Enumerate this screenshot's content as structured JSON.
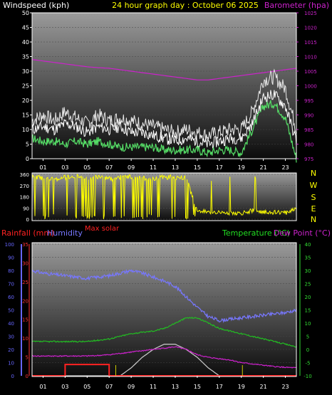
{
  "header": {
    "left": "Windspeed (kph)",
    "center": "24 hour graph day : October 06 2025",
    "right": "Barometer (hpa)"
  },
  "colors": {
    "background": "#000000",
    "frame": "#ffffff",
    "wind": "#ffffff",
    "gust": "#e8e8e8",
    "wind_avg": "#55dd66",
    "barometer": "#cc22cc",
    "direction": "#ffff00",
    "rain": "#ff2222",
    "humidity": "#7777ff",
    "temperature": "#22bb22",
    "dew_point": "#cc22cc",
    "solar": "#cccccc",
    "max_solar_marker": "#cccc00",
    "left_axis_rain": "#ff3333",
    "left_axis_hum": "#6666ff",
    "right_axis_temp": "#33dd33"
  },
  "chart_data": [
    {
      "type": "line",
      "title": "24 hour graph day : October 06 2025",
      "ylabel": "Windspeed (kph)",
      "y2label": "Barometer (hpa)",
      "xticks": [
        "01",
        "03",
        "05",
        "07",
        "09",
        "11",
        "13",
        "15",
        "17",
        "19",
        "21",
        "23"
      ],
      "ylim": [
        0,
        50
      ],
      "yticks": [
        0,
        5,
        10,
        15,
        20,
        25,
        30,
        35,
        40,
        45,
        50
      ],
      "y2lim": [
        975,
        1025
      ],
      "y2ticks": [
        975,
        980,
        985,
        990,
        995,
        1000,
        1005,
        1010,
        1015,
        1020,
        1025
      ],
      "x": [
        0,
        1,
        2,
        3,
        4,
        5,
        6,
        7,
        8,
        9,
        10,
        11,
        12,
        13,
        14,
        15,
        16,
        17,
        18,
        19,
        20,
        21,
        22,
        23,
        24
      ],
      "series": [
        {
          "name": "Barometer",
          "axis": "y2",
          "values": [
            1009,
            1008.5,
            1008,
            1007.5,
            1007,
            1006.5,
            1006.2,
            1006,
            1005.5,
            1005,
            1004.5,
            1004,
            1003.5,
            1003,
            1002.5,
            1002,
            1002,
            1002.5,
            1003,
            1003.5,
            1004,
            1004.5,
            1005,
            1005.5,
            1006
          ]
        },
        {
          "name": "Wind gust",
          "axis": "y",
          "values": [
            13,
            15,
            13,
            16,
            14,
            12,
            15,
            13,
            14,
            13,
            12,
            11,
            10,
            9,
            10,
            9,
            8,
            9,
            10,
            10,
            16,
            27,
            28,
            24,
            10
          ]
        },
        {
          "name": "Wind speed",
          "axis": "y",
          "values": [
            10,
            11,
            10,
            12,
            11,
            9,
            11,
            10,
            11,
            9,
            9,
            8,
            7,
            6,
            7,
            6,
            5,
            6,
            7,
            7,
            12,
            21,
            22,
            18,
            6
          ]
        },
        {
          "name": "Wind average",
          "axis": "y",
          "values": [
            7,
            6,
            6,
            5,
            6,
            5,
            6,
            5,
            4,
            4,
            4,
            4,
            3,
            3,
            3,
            3,
            2,
            3,
            3,
            2,
            10,
            18,
            19,
            14,
            0
          ]
        }
      ]
    },
    {
      "type": "scatter",
      "ylabel": "Wind direction",
      "ylim": [
        0,
        360
      ],
      "yticks": [
        0,
        90,
        180,
        270,
        360
      ],
      "compass": [
        "N",
        "W",
        "S",
        "E",
        "N"
      ],
      "x": [
        0,
        1,
        2,
        3,
        4,
        5,
        6,
        7,
        8,
        9,
        10,
        11,
        12,
        13,
        14,
        15,
        16,
        17,
        18,
        19,
        20,
        21,
        22,
        23,
        24
      ],
      "values": [
        340,
        330,
        320,
        335,
        345,
        330,
        340,
        325,
        335,
        340,
        330,
        320,
        340,
        335,
        330,
        70,
        60,
        55,
        50,
        45,
        70,
        60,
        55,
        50,
        90
      ]
    },
    {
      "type": "line",
      "ylabel": "Rainfall (mm)",
      "y3label": "Humidity",
      "y2label": "Temperature (°C)",
      "y4label": "Dew Point (°C)",
      "solar_label": "Max solar",
      "xticks": [
        "01",
        "03",
        "05",
        "07",
        "09",
        "11",
        "13",
        "15",
        "17",
        "19",
        "21",
        "23"
      ],
      "ylim": [
        0,
        35
      ],
      "yticks": [
        0,
        5,
        10,
        15,
        20,
        25,
        30,
        35
      ],
      "hum_lim": [
        0,
        100
      ],
      "hum_ticks": [
        0,
        10,
        20,
        30,
        40,
        50,
        60,
        70,
        80,
        90,
        100
      ],
      "y2lim": [
        -10,
        40
      ],
      "y2ticks": [
        -10,
        -5,
        0,
        5,
        10,
        15,
        20,
        25,
        30,
        35,
        40
      ],
      "x": [
        0,
        1,
        2,
        3,
        4,
        5,
        6,
        7,
        8,
        9,
        10,
        11,
        12,
        13,
        14,
        15,
        16,
        17,
        18,
        19,
        20,
        21,
        22,
        23,
        24
      ],
      "series": [
        {
          "name": "Humidity",
          "axis": "hum",
          "values": [
            80,
            78,
            77,
            76,
            75,
            74,
            75,
            76,
            78,
            80,
            78,
            75,
            72,
            68,
            60,
            52,
            45,
            42,
            43,
            44,
            45,
            46,
            47,
            48,
            50
          ]
        },
        {
          "name": "Temperature",
          "axis": "y2",
          "values": [
            3,
            3,
            3,
            3,
            3,
            3,
            3.5,
            4,
            5,
            6,
            6.5,
            7,
            8,
            10,
            12,
            12,
            10,
            8,
            7,
            6,
            5,
            4,
            3,
            2,
            1
          ]
        },
        {
          "name": "Dew Point",
          "axis": "y2",
          "values": [
            -2.5,
            -2.5,
            -2.5,
            -2.5,
            -2.5,
            -2.5,
            -2.3,
            -2,
            -1.5,
            -1,
            -0.5,
            0,
            0.5,
            1,
            0,
            -2,
            -3,
            -3.5,
            -4,
            -5,
            -5.5,
            -6,
            -6.5,
            -6.8,
            -7
          ]
        },
        {
          "name": "Rainfall",
          "axis": "y",
          "values": [
            0,
            0,
            0,
            3,
            3,
            3,
            3,
            0,
            0,
            0,
            0,
            0,
            0,
            0,
            0,
            0,
            0,
            0,
            0,
            0,
            0,
            0,
            0,
            0,
            0
          ]
        },
        {
          "name": "Max solar",
          "axis": "y2",
          "values": [
            -10,
            -10,
            -10,
            -10,
            -10,
            -10,
            -10,
            -10,
            -10,
            -7,
            -3,
            0,
            2,
            2,
            0,
            -3,
            -7,
            -10,
            -10,
            -10,
            -10,
            -10,
            -10,
            -10,
            -10
          ]
        }
      ],
      "max_solar_markers": [
        7.6,
        19.1
      ]
    }
  ]
}
